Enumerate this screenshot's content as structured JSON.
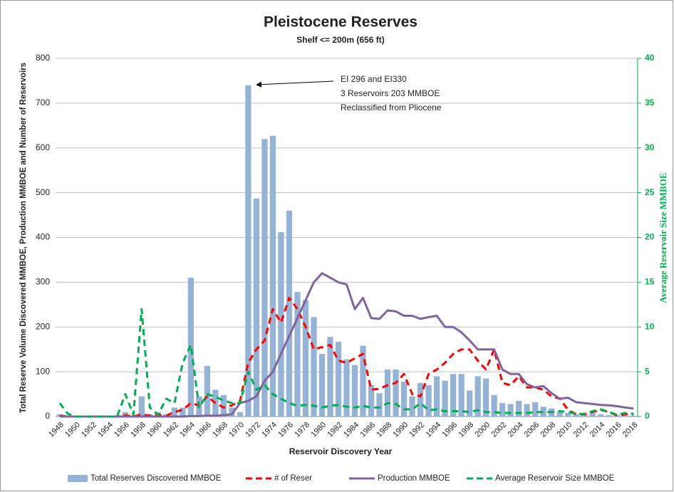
{
  "chart_data": {
    "type": "bar",
    "title": "Pleistocene Reserves",
    "subtitle": "Shelf <= 200m (656 ft)",
    "x_label": "Reservoir Discovery Year",
    "y_label": "Total Reserve Volume Discovered MMBOE, Production MMBOE and Number of Reservoirs",
    "y2_label": "Average Reservoir Size MMBOE",
    "annotation": [
      "EI 296 and EI330",
      "3 Reservoirs 203 MMBOE",
      "Reclassified from Pliocene"
    ],
    "categories": [
      "1948",
      null,
      "1950",
      null,
      "1952",
      null,
      "1954",
      null,
      "1956",
      null,
      "1958",
      null,
      "1960",
      null,
      "1962",
      null,
      "1964",
      null,
      "1966",
      null,
      "1968",
      null,
      "1970",
      null,
      "1972",
      null,
      "1974",
      null,
      "1976",
      null,
      "1978",
      null,
      "1980",
      null,
      "1982",
      null,
      "1984",
      null,
      "1986",
      null,
      "1988",
      null,
      "1990",
      null,
      "1992",
      null,
      "1994",
      null,
      "1996",
      null,
      "1998",
      null,
      "2000",
      null,
      "2002",
      null,
      "2004",
      null,
      "2006",
      null,
      "2008",
      null,
      "2010",
      null,
      "2012",
      null,
      "2014",
      null,
      "2016",
      null,
      "2018"
    ],
    "ylim": [
      0,
      800
    ],
    "yticks": [
      0,
      100,
      200,
      300,
      400,
      500,
      600,
      700,
      800
    ],
    "y2lim": [
      0,
      40
    ],
    "y2ticks": [
      0,
      5,
      10,
      15,
      20,
      25,
      30,
      35,
      40
    ],
    "grid": true,
    "series": [
      {
        "name": "Total Reserves Discovered MMBOE",
        "color": "#95b3d7",
        "type": "bar",
        "values": [
          5,
          0,
          0,
          0,
          0,
          0,
          0,
          0,
          10,
          0,
          45,
          5,
          10,
          5,
          20,
          20,
          310,
          45,
          113,
          60,
          48,
          20,
          10,
          740,
          487,
          620,
          627,
          412,
          460,
          278,
          260,
          222,
          140,
          178,
          167,
          128,
          115,
          158,
          70,
          52,
          105,
          105,
          78,
          45,
          75,
          70,
          90,
          80,
          95,
          95,
          58,
          90,
          85,
          48,
          30,
          28,
          35,
          28,
          32,
          22,
          18,
          10,
          8,
          5,
          5,
          8,
          5,
          3,
          3,
          2,
          2
        ]
      },
      {
        "name": "# of Reser",
        "color": "#ff0000",
        "type": "line",
        "dashed": true,
        "values": [
          2,
          0,
          0,
          0,
          0,
          0,
          0,
          0,
          3,
          0,
          5,
          2,
          3,
          2,
          10,
          15,
          30,
          25,
          45,
          30,
          20,
          25,
          35,
          120,
          150,
          170,
          240,
          210,
          265,
          240,
          200,
          150,
          155,
          160,
          125,
          120,
          130,
          140,
          60,
          62,
          70,
          75,
          95,
          50,
          45,
          95,
          105,
          120,
          140,
          150,
          150,
          125,
          105,
          150,
          75,
          70,
          90,
          65,
          65,
          60,
          45,
          40,
          15,
          5,
          5,
          10,
          15,
          10,
          2,
          5,
          5
        ]
      },
      {
        "name": "Production MMBOE",
        "color": "#8064a2",
        "type": "line",
        "dashed": false,
        "values": [
          0,
          0,
          0,
          0,
          0,
          0,
          0,
          0,
          0,
          0,
          0,
          0,
          0,
          0,
          0,
          0,
          1,
          1,
          2,
          2,
          3,
          5,
          30,
          35,
          45,
          80,
          100,
          140,
          180,
          220,
          260,
          300,
          320,
          310,
          300,
          295,
          240,
          265,
          220,
          218,
          237,
          235,
          225,
          225,
          218,
          222,
          225,
          200,
          200,
          188,
          170,
          150,
          150,
          150,
          105,
          95,
          95,
          72,
          65,
          68,
          52,
          40,
          42,
          32,
          30,
          28,
          26,
          25,
          23,
          20,
          18
        ]
      },
      {
        "name": "Average Reservoir Size MMBOE",
        "color": "#00b050",
        "type": "line",
        "dashed": true,
        "axis": "y2",
        "values": [
          1.5,
          0.3,
          0,
          0,
          0,
          0,
          0,
          0,
          2.5,
          0.2,
          12,
          1,
          0.2,
          2,
          1.5,
          6,
          8,
          1,
          2.5,
          2.2,
          1.8,
          1.5,
          1.5,
          5,
          3,
          3.5,
          2.5,
          2,
          1.5,
          1.2,
          1.3,
          1.2,
          1,
          1.2,
          1.3,
          1.1,
          1,
          1.2,
          1,
          1,
          1.5,
          1.4,
          0.8,
          0.8,
          1.5,
          0.7,
          0.8,
          0.6,
          0.6,
          0.6,
          0.5,
          0.7,
          0.5,
          0.5,
          0.4,
          0.4,
          0.4,
          0.4,
          0.5,
          0.5,
          0.5,
          0.6,
          0.5,
          0.3,
          0.3,
          0.6,
          0.8,
          0.5,
          0.2,
          0.4,
          0.3
        ]
      }
    ]
  }
}
